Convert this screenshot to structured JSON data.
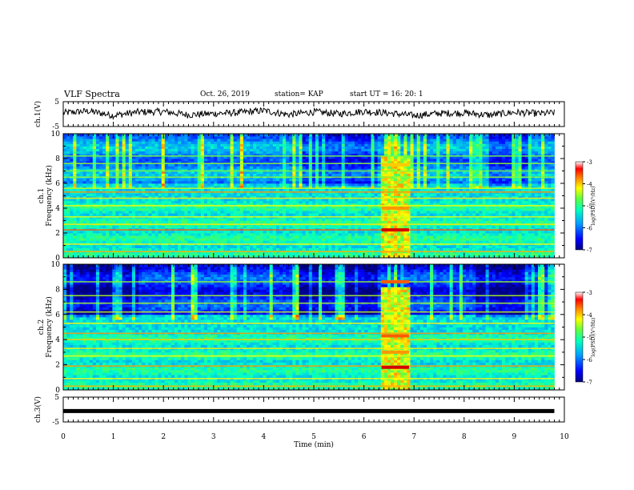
{
  "header": {
    "title": "VLF Spectra",
    "date": "Oct. 26, 2019",
    "station": "station= KAP",
    "start": "start  UT =   16: 20: 1"
  },
  "colors": {
    "cmap": [
      "#00008f",
      "#0000ff",
      "#0080ff",
      "#00ffff",
      "#80ff80",
      "#ffff00",
      "#ff8000",
      "#ff0000",
      "#800000"
    ],
    "waveform": "#000000",
    "axis": "#000000"
  },
  "chart_data": [
    {
      "type": "line",
      "panel": "ch1-waveform",
      "ylabel": "ch.1(V)",
      "ylim": [
        -5,
        5
      ],
      "yticks": [
        "5",
        "-5"
      ],
      "xlim": [
        0,
        10
      ],
      "description_values": "noisy waveform oscillating roughly between -3 and +3 V",
      "x": [
        0,
        0.5,
        1,
        1.5,
        2,
        2.5,
        3,
        3.5,
        4,
        4.5,
        5,
        5.5,
        6,
        6.5,
        7,
        7.5,
        8,
        8.5,
        9,
        9.5,
        9.8
      ],
      "y": [
        0.5,
        1.2,
        -0.5,
        0.8,
        1.0,
        -0.3,
        0.2,
        0.6,
        1.4,
        -0.2,
        0.9,
        0.1,
        1.1,
        0.4,
        -0.6,
        0.3,
        0.5,
        -0.4,
        0.7,
        0.2,
        0.5
      ]
    },
    {
      "type": "heatmap",
      "panel": "ch1-spectrogram",
      "ylabel": "ch.1  Frequency (kHz)",
      "ylim": [
        0,
        10
      ],
      "yticks": [
        "0",
        "2",
        "4",
        "6",
        "8",
        "10"
      ],
      "xlim": [
        0,
        10
      ],
      "colorbar": {
        "label": "log(PSD)(V²/Hz)",
        "range": [
          -7,
          -3
        ],
        "ticks": [
          "-3",
          "-4",
          "-5",
          "-6",
          "-7"
        ]
      },
      "burst_interval_min": [
        6.35,
        6.9
      ]
    },
    {
      "type": "heatmap",
      "panel": "ch2-spectrogram",
      "ylabel": "ch.2  Frequency (kHz)",
      "ylim": [
        0,
        10
      ],
      "yticks": [
        "0",
        "2",
        "4",
        "6",
        "8",
        "10"
      ],
      "xlim": [
        0,
        10
      ],
      "colorbar": {
        "label": "log(PSD)(V²/Hz)",
        "range": [
          -7,
          -3
        ],
        "ticks": [
          "-3",
          "-4",
          "-5",
          "-6",
          "-7"
        ]
      },
      "burst_interval_min": [
        6.35,
        6.9
      ]
    },
    {
      "type": "line",
      "panel": "ch3-waveform",
      "ylabel": "ch.3(V)",
      "ylim": [
        -5,
        5
      ],
      "yticks": [
        "5",
        "-5"
      ],
      "xlim": [
        0,
        10
      ],
      "x": [
        0,
        9.8
      ],
      "y": [
        -0.6,
        -0.6
      ]
    }
  ],
  "xaxis": {
    "label": "Time  (min)",
    "ticks": [
      "0",
      "1",
      "2",
      "3",
      "4",
      "5",
      "6",
      "7",
      "8",
      "9",
      "10"
    ]
  }
}
